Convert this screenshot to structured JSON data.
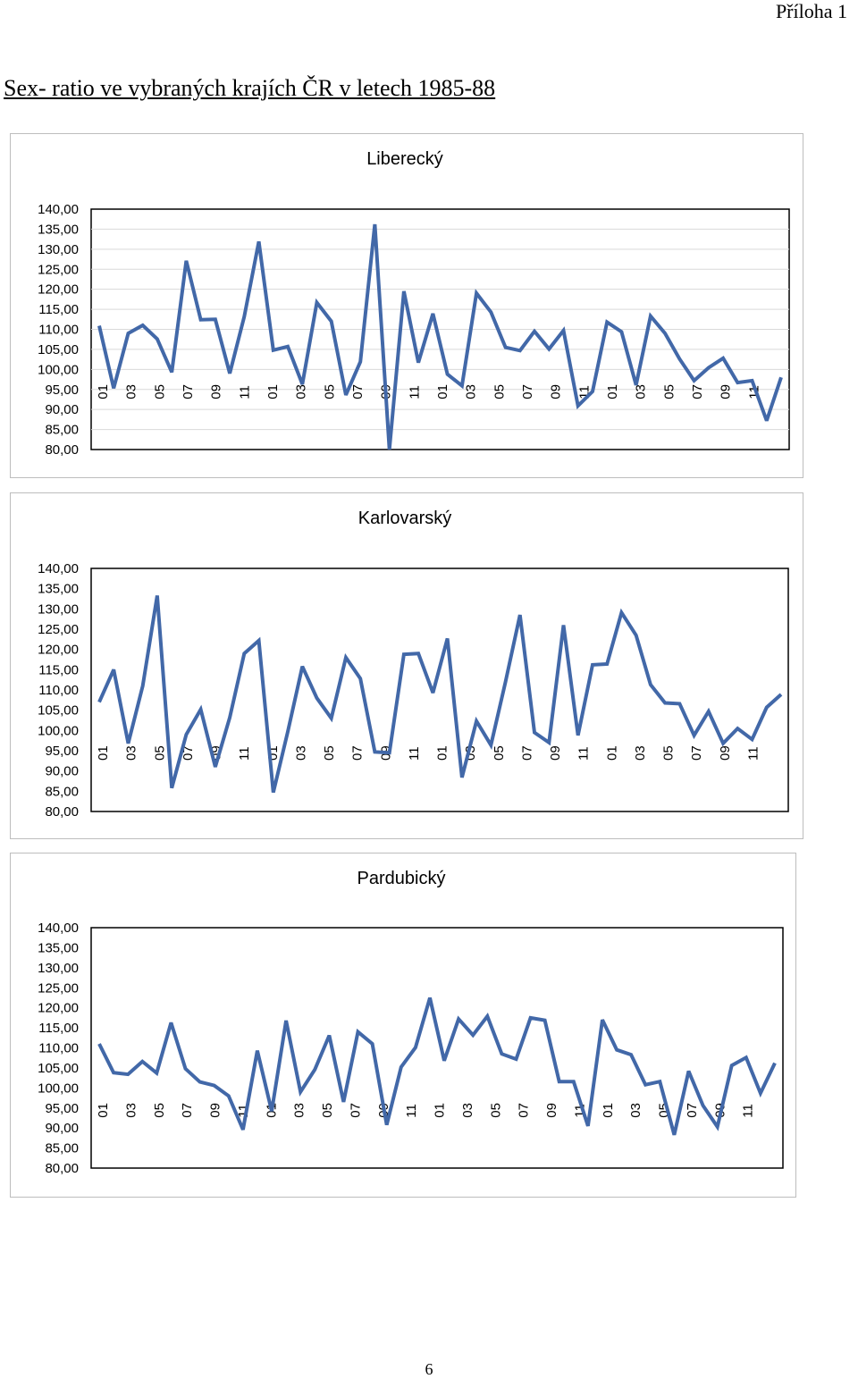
{
  "page": {
    "appendix_label": "Příloha 1",
    "title": "Sex- ratio ve vybraných krajích ČR v letech 1985-88",
    "page_number": "6"
  },
  "colors": {
    "series": "#4268a8",
    "grid": "#d9d9d9",
    "axis": "#000000"
  },
  "chart_data": [
    {
      "type": "line",
      "title": "Liberecký",
      "xlabel": "",
      "ylabel": "",
      "ylim": [
        80,
        140
      ],
      "y_ticks": [
        "140,00",
        "135,00",
        "130,00",
        "125,00",
        "120,00",
        "115,00",
        "110,00",
        "105,00",
        "100,00",
        "95,00",
        "90,00",
        "85,00",
        "80,00"
      ],
      "x_tick_labels": [
        "01",
        "03",
        "05",
        "07",
        "09",
        "11",
        "01",
        "03",
        "05",
        "07",
        "09",
        "11",
        "01",
        "03",
        "05",
        "07",
        "09",
        "11",
        "01",
        "03",
        "05",
        "07",
        "09",
        "11"
      ],
      "grid": true,
      "legend": "none",
      "values": [
        110.9,
        95.3,
        109.0,
        111.0,
        107.6,
        99.3,
        127.1,
        112.4,
        112.5,
        99.0,
        113.2,
        131.9,
        104.8,
        105.7,
        96.3,
        116.7,
        112.0,
        93.6,
        101.9,
        136.2,
        80.0,
        119.5,
        101.7,
        113.9,
        98.8,
        95.9,
        119.0,
        114.3,
        105.5,
        104.7,
        109.5,
        105.1,
        109.7,
        90.9,
        94.5,
        111.8,
        109.4,
        96.1,
        113.3,
        109.0,
        102.6,
        97.2,
        100.4,
        102.8,
        96.7,
        97.2,
        87.2,
        98.0
      ]
    },
    {
      "type": "line",
      "title": "Karlovarský",
      "xlabel": "",
      "ylabel": "",
      "ylim": [
        80,
        140
      ],
      "y_ticks": [
        "140,00",
        "135,00",
        "130,00",
        "125,00",
        "120,00",
        "115,00",
        "110,00",
        "105,00",
        "100,00",
        "95,00",
        "90,00",
        "85,00",
        "80,00"
      ],
      "x_tick_labels": [
        "01",
        "03",
        "05",
        "07",
        "09",
        "11",
        "01",
        "03",
        "05",
        "07",
        "09",
        "11",
        "01",
        "03",
        "05",
        "07",
        "09",
        "11",
        "01",
        "03",
        "05",
        "07",
        "09",
        "11"
      ],
      "grid": false,
      "legend": "none",
      "values": [
        107.0,
        115.0,
        96.8,
        111.0,
        133.3,
        85.8,
        99.0,
        105.2,
        91.0,
        103.2,
        119.0,
        122.2,
        84.7,
        99.7,
        115.8,
        108.0,
        103.0,
        118.0,
        112.8,
        94.7,
        94.5,
        118.8,
        119.0,
        109.3,
        122.7,
        88.4,
        102.3,
        96.4,
        112.0,
        128.5,
        99.5,
        97.0,
        126.0,
        98.8,
        116.2,
        116.4,
        129.1,
        123.5,
        111.3,
        106.8,
        106.6,
        98.8,
        104.7,
        96.8,
        100.5,
        97.8,
        105.7,
        108.9
      ]
    },
    {
      "type": "line",
      "title": "Pardubický",
      "xlabel": "",
      "ylabel": "",
      "ylim": [
        80,
        140
      ],
      "y_ticks": [
        "140,00",
        "135,00",
        "130,00",
        "125,00",
        "120,00",
        "115,00",
        "110,00",
        "105,00",
        "100,00",
        "95,00",
        "90,00",
        "85,00",
        "80,00"
      ],
      "x_tick_labels": [
        "01",
        "03",
        "05",
        "07",
        "09",
        "11",
        "01",
        "03",
        "05",
        "07",
        "09",
        "11",
        "01",
        "03",
        "05",
        "07",
        "09",
        "11",
        "01",
        "03",
        "05",
        "07",
        "09",
        "11"
      ],
      "grid": false,
      "legend": "none",
      "values": [
        111.0,
        103.8,
        103.4,
        106.6,
        103.7,
        116.3,
        104.8,
        101.5,
        100.6,
        98.0,
        89.6,
        109.3,
        94.2,
        116.8,
        99.0,
        104.6,
        113.1,
        96.5,
        114.0,
        111.0,
        90.8,
        105.2,
        110.1,
        122.5,
        106.8,
        117.2,
        113.2,
        117.9,
        108.5,
        107.2,
        117.5,
        116.9,
        101.6,
        101.6,
        90.5,
        117.0,
        109.5,
        108.3,
        100.8,
        101.6,
        88.3,
        104.2,
        95.6,
        90.3,
        105.6,
        107.6,
        98.7,
        106.2
      ]
    }
  ]
}
